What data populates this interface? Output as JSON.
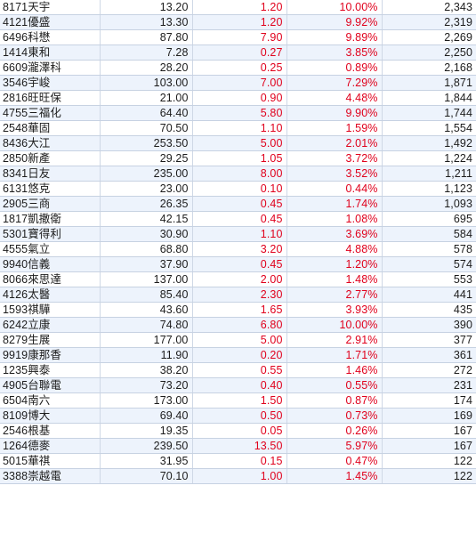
{
  "colors": {
    "text": "#1c1c1c",
    "up": "#e0001c",
    "row_alt": "#edf3fc",
    "grid_line": "#c7d2e2"
  },
  "rows": [
    {
      "stock": "8171天宇",
      "price": "13.20",
      "change": "1.20",
      "pct": "10.00%",
      "volume": "2,343"
    },
    {
      "stock": "4121優盛",
      "price": "13.30",
      "change": "1.20",
      "pct": "9.92%",
      "volume": "2,319"
    },
    {
      "stock": "6496科懋",
      "price": "87.80",
      "change": "7.90",
      "pct": "9.89%",
      "volume": "2,269"
    },
    {
      "stock": "1414東和",
      "price": "7.28",
      "change": "0.27",
      "pct": "3.85%",
      "volume": "2,250"
    },
    {
      "stock": "6609瀧澤科",
      "price": "28.20",
      "change": "0.25",
      "pct": "0.89%",
      "volume": "2,168"
    },
    {
      "stock": "3546宇峻",
      "price": "103.00",
      "change": "7.00",
      "pct": "7.29%",
      "volume": "1,871"
    },
    {
      "stock": "2816旺旺保",
      "price": "21.00",
      "change": "0.90",
      "pct": "4.48%",
      "volume": "1,844"
    },
    {
      "stock": "4755三福化",
      "price": "64.40",
      "change": "5.80",
      "pct": "9.90%",
      "volume": "1,744"
    },
    {
      "stock": "2548華固",
      "price": "70.50",
      "change": "1.10",
      "pct": "1.59%",
      "volume": "1,554"
    },
    {
      "stock": "8436大江",
      "price": "253.50",
      "change": "5.00",
      "pct": "2.01%",
      "volume": "1,492"
    },
    {
      "stock": "2850新產",
      "price": "29.25",
      "change": "1.05",
      "pct": "3.72%",
      "volume": "1,224"
    },
    {
      "stock": "8341日友",
      "price": "235.00",
      "change": "8.00",
      "pct": "3.52%",
      "volume": "1,211"
    },
    {
      "stock": "6131悠克",
      "price": "23.00",
      "change": "0.10",
      "pct": "0.44%",
      "volume": "1,123"
    },
    {
      "stock": "2905三商",
      "price": "26.35",
      "change": "0.45",
      "pct": "1.74%",
      "volume": "1,093"
    },
    {
      "stock": "1817凱撒衛",
      "price": "42.15",
      "change": "0.45",
      "pct": "1.08%",
      "volume": "695"
    },
    {
      "stock": "5301寶得利",
      "price": "30.90",
      "change": "1.10",
      "pct": "3.69%",
      "volume": "584"
    },
    {
      "stock": "4555氣立",
      "price": "68.80",
      "change": "3.20",
      "pct": "4.88%",
      "volume": "578"
    },
    {
      "stock": "9940信義",
      "price": "37.90",
      "change": "0.45",
      "pct": "1.20%",
      "volume": "574"
    },
    {
      "stock": "8066來思達",
      "price": "137.00",
      "change": "2.00",
      "pct": "1.48%",
      "volume": "553"
    },
    {
      "stock": "4126太醫",
      "price": "85.40",
      "change": "2.30",
      "pct": "2.77%",
      "volume": "441"
    },
    {
      "stock": "1593祺驊",
      "price": "43.60",
      "change": "1.65",
      "pct": "3.93%",
      "volume": "435"
    },
    {
      "stock": "6242立康",
      "price": "74.80",
      "change": "6.80",
      "pct": "10.00%",
      "volume": "390"
    },
    {
      "stock": "8279生展",
      "price": "177.00",
      "change": "5.00",
      "pct": "2.91%",
      "volume": "377"
    },
    {
      "stock": "9919康那香",
      "price": "11.90",
      "change": "0.20",
      "pct": "1.71%",
      "volume": "361"
    },
    {
      "stock": "1235興泰",
      "price": "38.20",
      "change": "0.55",
      "pct": "1.46%",
      "volume": "272"
    },
    {
      "stock": "4905台聯電",
      "price": "73.20",
      "change": "0.40",
      "pct": "0.55%",
      "volume": "231"
    },
    {
      "stock": "6504南六",
      "price": "173.00",
      "change": "1.50",
      "pct": "0.87%",
      "volume": "174"
    },
    {
      "stock": "8109博大",
      "price": "69.40",
      "change": "0.50",
      "pct": "0.73%",
      "volume": "169"
    },
    {
      "stock": "2546根基",
      "price": "19.35",
      "change": "0.05",
      "pct": "0.26%",
      "volume": "167"
    },
    {
      "stock": "1264德麥",
      "price": "239.50",
      "change": "13.50",
      "pct": "5.97%",
      "volume": "167"
    },
    {
      "stock": "5015華祺",
      "price": "31.95",
      "change": "0.15",
      "pct": "0.47%",
      "volume": "122"
    },
    {
      "stock": "3388崇越電",
      "price": "70.10",
      "change": "1.00",
      "pct": "1.45%",
      "volume": "122"
    }
  ]
}
